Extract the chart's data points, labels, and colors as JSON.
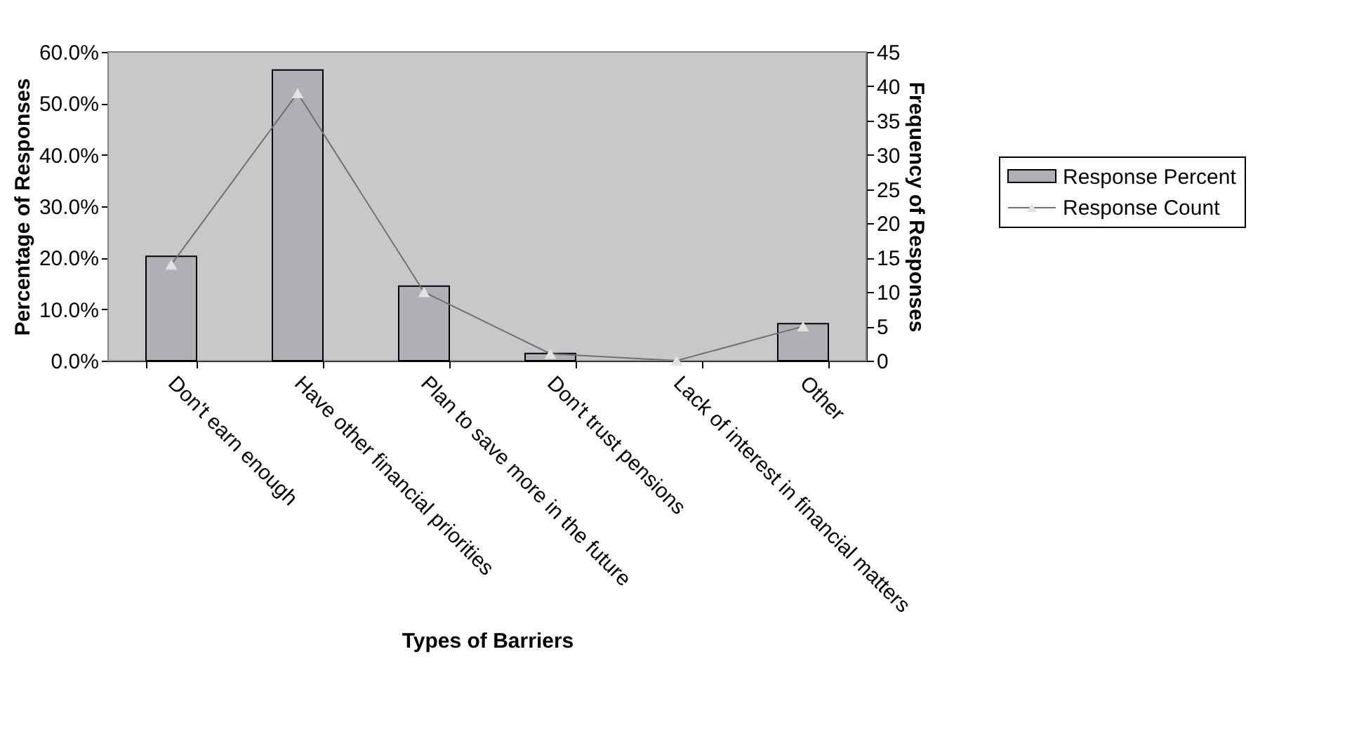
{
  "chart_data": {
    "type": "bar",
    "categories": [
      "Don't earn enough",
      "Have other financial priorities",
      "Plan to save more in the future",
      "Don't trust pensions",
      "Lack of interest in financial matters",
      "Other"
    ],
    "xlabel": "Types of Barriers",
    "ylabel": "Percentage of Responses",
    "y2label": "Frequency of Responses",
    "series": [
      {
        "name": "Response Percent",
        "color": "#b0b0b4",
        "values": [
          20.3,
          56.5,
          14.5,
          1.4,
          0,
          7.2
        ]
      },
      {
        "name": "Response Count",
        "type": "line",
        "axis": "y2",
        "color": "#707070",
        "values": [
          14,
          39,
          10,
          1,
          0,
          5
        ]
      }
    ],
    "ylim": [
      0,
      60
    ],
    "yticks": [
      {
        "value": 0,
        "label": "0.0%"
      },
      {
        "value": 10,
        "label": "10.0%"
      },
      {
        "value": 20,
        "label": "20.0%"
      },
      {
        "value": 30,
        "label": "30.0%"
      },
      {
        "value": 40,
        "label": "40.0%"
      },
      {
        "value": 50,
        "label": "50.0%"
      },
      {
        "value": 60,
        "label": "60.0%"
      }
    ],
    "y2lim": [
      0,
      45
    ],
    "y2ticks": [
      0,
      5,
      10,
      15,
      20,
      25,
      30,
      35,
      40,
      45
    ],
    "marker": "triangle",
    "legend": "right"
  }
}
